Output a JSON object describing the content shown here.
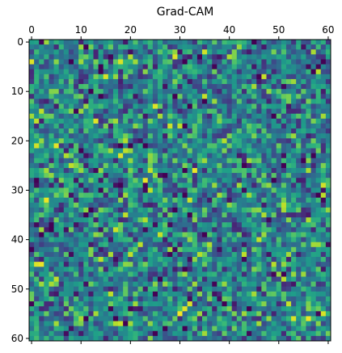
{
  "chart_data": {
    "type": "heatmap",
    "title": "Grad-CAM",
    "xlabel": "",
    "ylabel": "",
    "rows": 61,
    "cols": 61,
    "colormap": "viridis",
    "x_ticks": [
      0,
      10,
      20,
      30,
      40,
      50,
      60
    ],
    "y_ticks": [
      0,
      10,
      20,
      30,
      40,
      50,
      60
    ],
    "x_tick_position": "top",
    "grid": false,
    "legend": "none",
    "value_range": [
      0,
      1
    ],
    "bright_spots": [
      {
        "x": 0,
        "y": 4,
        "value": 0.95
      },
      {
        "x": 2,
        "y": 14,
        "value": 0.9
      },
      {
        "x": 10,
        "y": 4,
        "value": 0.85
      },
      {
        "x": 20,
        "y": 3,
        "value": 0.88
      },
      {
        "x": 29,
        "y": 3,
        "value": 0.95
      },
      {
        "x": 33,
        "y": 26,
        "value": 0.97
      },
      {
        "x": 24,
        "y": 30,
        "value": 0.9
      },
      {
        "x": 16,
        "y": 22,
        "value": 0.85
      },
      {
        "x": 41,
        "y": 3,
        "value": 0.8
      },
      {
        "x": 51,
        "y": 33,
        "value": 0.9
      },
      {
        "x": 14,
        "y": 44,
        "value": 0.9
      },
      {
        "x": 28,
        "y": 42,
        "value": 0.85
      },
      {
        "x": 16,
        "y": 51,
        "value": 0.9
      },
      {
        "x": 31,
        "y": 54,
        "value": 0.95
      },
      {
        "x": 46,
        "y": 55,
        "value": 0.8
      },
      {
        "x": 59,
        "y": 25,
        "value": 0.8
      },
      {
        "x": 53,
        "y": 8,
        "value": 0.85
      },
      {
        "x": 45,
        "y": 46,
        "value": 0.8
      }
    ],
    "seed": 7
  },
  "colors": {
    "viridis": [
      "#440154",
      "#482878",
      "#3e4989",
      "#31688e",
      "#26828e",
      "#1f9e89",
      "#35b779",
      "#6ece58",
      "#b5de2b",
      "#fde725"
    ]
  }
}
